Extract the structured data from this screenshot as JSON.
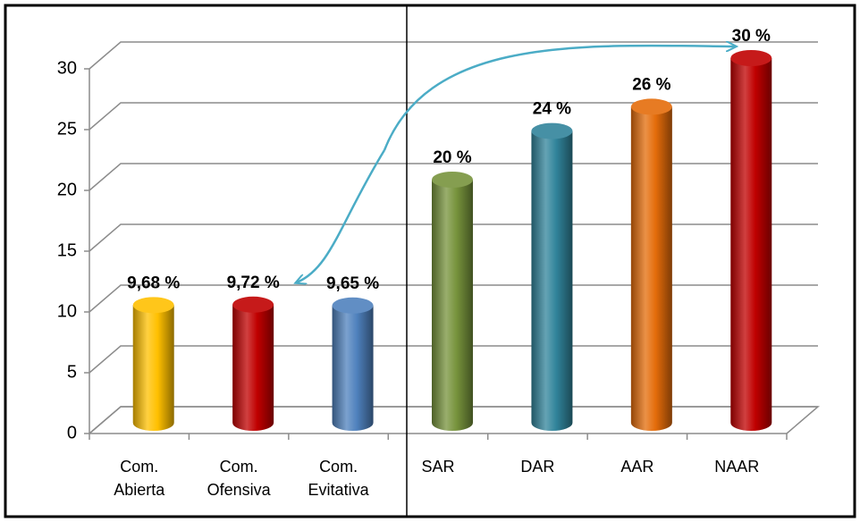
{
  "chart_data": {
    "type": "bar",
    "categories": [
      "Com. Abierta",
      "Com. Ofensiva",
      "Com. Evitativa",
      "SAR",
      "DAR",
      "AAR",
      "NAAR"
    ],
    "values": [
      9.68,
      9.72,
      9.65,
      20,
      24,
      26,
      30
    ],
    "value_labels": [
      "9,68 %",
      "9,72 %",
      "9,65 %",
      "20 %",
      "24 %",
      "26 %",
      "30 %"
    ],
    "colors": [
      "#ffc000",
      "#c00000",
      "#4f81bd",
      "#77933c",
      "#31849b",
      "#e46c0a",
      "#c00000"
    ],
    "ylim": [
      0,
      30
    ],
    "yticks": [
      0,
      5,
      10,
      15,
      20,
      25,
      30
    ],
    "grid": true
  }
}
